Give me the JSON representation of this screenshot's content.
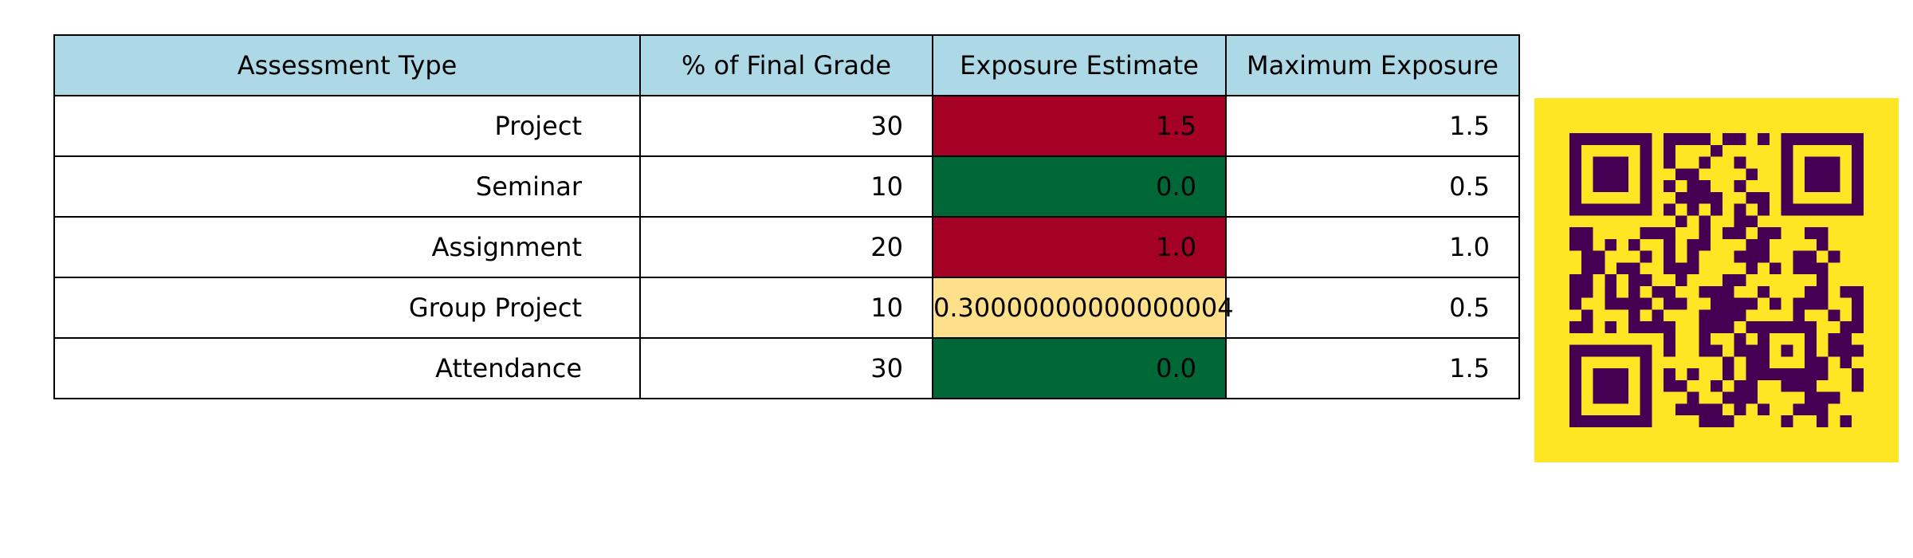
{
  "chart_data": {
    "type": "table",
    "columns": [
      "Assessment Type",
      "% of Final Grade",
      "Exposure Estimate",
      "Maximum Exposure"
    ],
    "rows": [
      {
        "type": "Project",
        "pct": "30",
        "estimate": "1.5",
        "max": "1.5",
        "estimate_color": "#a50026"
      },
      {
        "type": "Seminar",
        "pct": "10",
        "estimate": "0.0",
        "max": "0.5",
        "estimate_color": "#006837"
      },
      {
        "type": "Assignment",
        "pct": "20",
        "estimate": "1.0",
        "max": "1.0",
        "estimate_color": "#a50026"
      },
      {
        "type": "Group Project",
        "pct": "10",
        "estimate": "0.30000000000000004",
        "max": "0.5",
        "estimate_color": "#fee08b"
      },
      {
        "type": "Attendance",
        "pct": "30",
        "estimate": "0.0",
        "max": "1.5",
        "estimate_color": "#006837"
      }
    ],
    "header_color": "#add8e6"
  },
  "qr_code": {
    "icon": "qr-code-icon",
    "background_color": "#fde725",
    "module_color": "#440154"
  }
}
